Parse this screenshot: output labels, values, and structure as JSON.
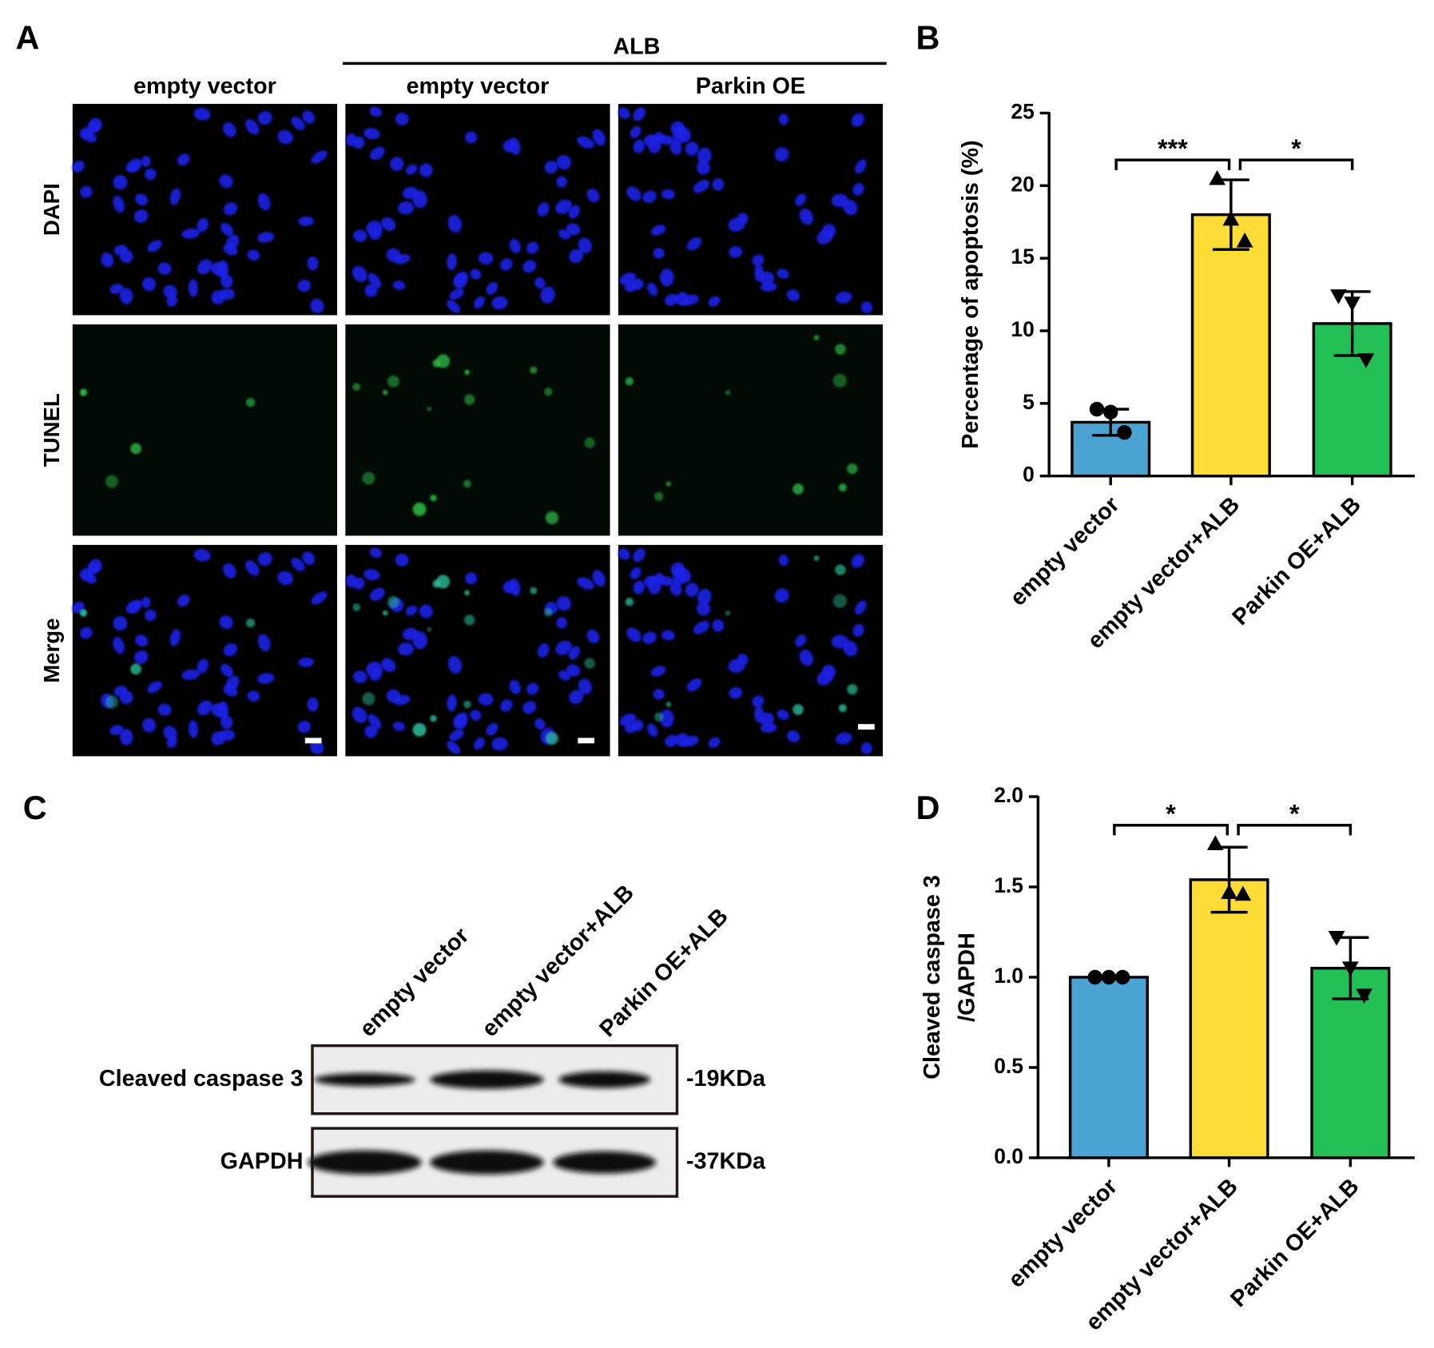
{
  "panel_labels": [
    "A",
    "B",
    "C",
    "D"
  ],
  "microscopy": {
    "group_label": "ALB",
    "columns": [
      "empty vector",
      "empty vector",
      "Parkin OE"
    ],
    "rows": [
      "DAPI",
      "TUNEL",
      "Merge"
    ]
  },
  "western_blot": {
    "lanes": [
      "empty vector",
      "empty vector+ALB",
      "Parkin OE+ALB"
    ],
    "rows": [
      {
        "label": "Cleaved caspase 3",
        "size": "-19KDa"
      },
      {
        "label": "GAPDH",
        "size": "-37KDa"
      }
    ]
  },
  "chart_data": [
    {
      "type": "bar",
      "ylabel": "Percentage of apoptosis (%)",
      "categories": [
        "empty vector",
        "empty vector+ALB",
        "Parkin OE+ALB"
      ],
      "values": [
        3.7,
        18,
        10.5
      ],
      "errors": [
        0.9,
        2.4,
        2.2
      ],
      "points": [
        [
          4.6,
          4.4,
          3.0
        ],
        [
          20.5,
          17.7,
          16.2
        ],
        [
          12.4,
          11.9,
          8.0
        ]
      ],
      "markers": [
        "circle",
        "triangle-up",
        "triangle-down"
      ],
      "colors": [
        "#4ba3d4",
        "#fddd35",
        "#22bf55"
      ],
      "ylim": [
        0,
        25
      ],
      "yticks": [
        0,
        5,
        10,
        15,
        20,
        25
      ],
      "significance": [
        {
          "from": 0,
          "to": 1,
          "label": "***"
        },
        {
          "from": 1,
          "to": 2,
          "label": "*"
        }
      ]
    },
    {
      "type": "bar",
      "ylabel": [
        "Cleaved caspase 3",
        "/GAPDH"
      ],
      "categories": [
        "empty vector",
        "empty vector+ALB",
        "Parkin OE+ALB"
      ],
      "values": [
        1.0,
        1.54,
        1.05
      ],
      "errors": [
        0,
        0.18,
        0.17
      ],
      "points": [
        [
          1.0,
          1.0,
          1.0
        ],
        [
          1.74,
          1.47,
          1.46
        ],
        [
          1.22,
          1.05,
          0.9
        ]
      ],
      "markers": [
        "circle",
        "triangle-up",
        "triangle-down"
      ],
      "colors": [
        "#4ba3d4",
        "#fddd35",
        "#22bf55"
      ],
      "ylim": [
        0,
        2
      ],
      "yticks": [
        {
          "value": 0,
          "label": "0.0"
        },
        0.5,
        {
          "value": 1,
          "label": "1.0"
        },
        1.5,
        {
          "value": 2,
          "label": "2.0"
        }
      ],
      "significance": [
        {
          "from": 0,
          "to": 1,
          "label": "*"
        },
        {
          "from": 1,
          "to": 2,
          "label": "*"
        }
      ]
    }
  ]
}
